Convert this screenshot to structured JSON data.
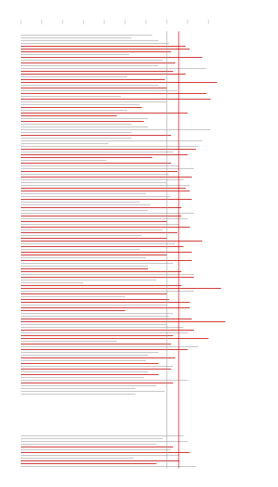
{
  "chart_data": {
    "type": "barh",
    "xlim": [
      0,
      10
    ],
    "xticks": [
      0,
      1,
      2,
      3,
      4,
      5,
      6,
      7,
      8,
      9
    ],
    "reference_lines": [
      {
        "value": 7.0,
        "color": "#a0a0a0"
      },
      {
        "value": 7.57,
        "color": "#c00000"
      }
    ],
    "series": [
      {
        "color": "#b4b4b4",
        "values": [
          6.3,
          5.3,
          6.6,
          7.1,
          null,
          null,
          null,
          5.2,
          null,
          6.8,
          null,
          6.6,
          8.9,
          null,
          null,
          5.1,
          null,
          null,
          6.6,
          null,
          7.5,
          null,
          4.8,
          null,
          7.0,
          5.7,
          null,
          5.1,
          null,
          null,
          6.1,
          null,
          5.3,
          6.1,
          9.1,
          5.3,
          null,
          5.3,
          8.7,
          4.2,
          8.5,
          null,
          7.3,
          null,
          null,
          4.1,
          null,
          7.6,
          8.3,
          null,
          7.1,
          null,
          7.8,
          7.0,
          8.1,
          null,
          null,
          6.0,
          7.2,
          null,
          5.7,
          6.2,
          null,
          6.1,
          8.3,
          null,
          8.0,
          null,
          7.6,
          null,
          6.8,
          null,
          5.8,
          null,
          null,
          7.4,
          null,
          5.7,
          null,
          null,
          6.0,
          null,
          7.3,
          6.1,
          null,
          null,
          8.3,
          null,
          6.5,
          3.0,
          null,
          null,
          8.3,
          null,
          5.0,
          null,
          null,
          7.0,
          null,
          null,
          7.3,
          7.1,
          null,
          null,
          7.0,
          7.8,
          null,
          8.0,
          null,
          null,
          4.6,
          null,
          8.5,
          null,
          6.6,
          6.1,
          null,
          6.0,
          null,
          7.3,
          null,
          6.1,
          null,
          5.9,
          8.0,
          null,
          6.5,
          5.5,
          6.9,
          5.5,
          null,
          null,
          null,
          null,
          null,
          null,
          null,
          null,
          null,
          null,
          null,
          null,
          null,
          null,
          7.8,
          6.8,
          8.0,
          6.5,
          null,
          7.2,
          null,
          7.6,
          5.4,
          null,
          null,
          8.4
        ]
      },
      {
        "color": "#c00000",
        "values": [
          null,
          null,
          null,
          null,
          7.9,
          8.1,
          7.2,
          null,
          8.7,
          null,
          7.4,
          null,
          null,
          7.3,
          7.9,
          null,
          6.9,
          9.4,
          null,
          7.0,
          null,
          8.9,
          null,
          9.1,
          null,
          null,
          5.8,
          null,
          8.0,
          4.6,
          null,
          5.9,
          null,
          null,
          null,
          null,
          7.2,
          null,
          null,
          null,
          null,
          8.4,
          null,
          8.0,
          6.3,
          null,
          7.2,
          null,
          null,
          7.5,
          null,
          8.2,
          null,
          null,
          null,
          7.9,
          8.1,
          null,
          null,
          8.2,
          null,
          null,
          7.7,
          null,
          null,
          7.7,
          null,
          7.0,
          null,
          8.1,
          null,
          7.5,
          null,
          7.0,
          8.7,
          null,
          7.8,
          null,
          8.2,
          7.0,
          null,
          8.2,
          null,
          null,
          6.1,
          7.7,
          null,
          8.3,
          null,
          null,
          7.7,
          9.6,
          null,
          7.0,
          null,
          7.1,
          8.1,
          null,
          8.1,
          5.0,
          null,
          null,
          8.2,
          9.8,
          null,
          null,
          8.3,
          null,
          7.3,
          9.0,
          null,
          7.2,
          null,
          8.0,
          null,
          null,
          7.4,
          null,
          6.6,
          null,
          7.2,
          null,
          6.6,
          null,
          null,
          7.3,
          null,
          null,
          null,
          null,
          null,
          null,
          null,
          null,
          null,
          null,
          null,
          null,
          null,
          null,
          null,
          null,
          null,
          null,
          null,
          null,
          null,
          null,
          7.3,
          null,
          8.1,
          null,
          null,
          7.6,
          6.5,
          null
        ]
      }
    ]
  }
}
